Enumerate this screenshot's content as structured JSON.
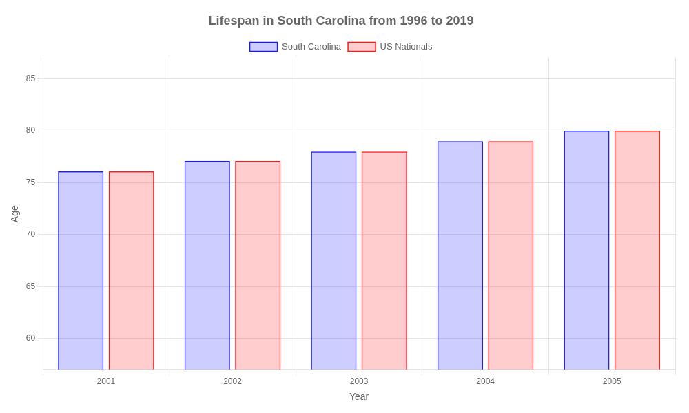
{
  "chart_data": {
    "type": "bar",
    "title": "Lifespan in South Carolina from 1996 to 2019",
    "x_label": "Year",
    "y_label": "Age",
    "categories": [
      "2001",
      "2002",
      "2003",
      "2004",
      "2005"
    ],
    "series": [
      {
        "name": "South Carolina",
        "color": "#1a1aff",
        "values": [
          76.1,
          77.1,
          78.0,
          79.0,
          80.0
        ]
      },
      {
        "name": "US Nationals",
        "color": "#ff1a1a",
        "values": [
          76.1,
          77.1,
          78.0,
          79.0,
          80.0
        ]
      }
    ],
    "ylim": [
      57,
      87
    ],
    "yticks": [
      60,
      65,
      70,
      75,
      80,
      85
    ],
    "grid": true,
    "legend": "top"
  }
}
